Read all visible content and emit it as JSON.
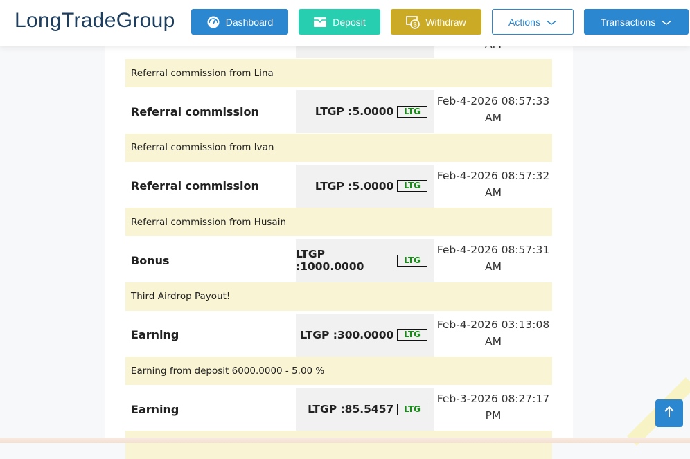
{
  "header": {
    "logo": "LongTradeGroup",
    "dashboard": "Dashboard",
    "deposit": "Deposit",
    "withdraw": "Withdraw",
    "actions": "Actions",
    "transactions": "Transactions"
  },
  "colors": {
    "primary": "#2a87d0",
    "deposit": "#27ceb0",
    "withdraw": "#cbab25",
    "desc_bg": "#f8f4d4",
    "badge_text": "#1a8a1a"
  },
  "partial_row": {
    "date_tail": "AM"
  },
  "transactions": [
    {
      "description": "Referral commission from Lina",
      "type": "Referral commission",
      "amount": "LTGP :5.0000",
      "currency": "LTG",
      "date": "Feb-4-2026 08:57:33",
      "ampm": "AM"
    },
    {
      "description": "Referral commission from Ivan",
      "type": "Referral commission",
      "amount": "LTGP :5.0000",
      "currency": "LTG",
      "date": "Feb-4-2026 08:57:32",
      "ampm": "AM"
    },
    {
      "description": "Referral commission from Husain",
      "type": "Bonus",
      "amount": "LTGP :1000.0000",
      "currency": "LTG",
      "date": "Feb-4-2026 08:57:31",
      "ampm": "AM"
    },
    {
      "description": "Third Airdrop Payout!",
      "type": "Earning",
      "amount": "LTGP :300.0000",
      "currency": "LTG",
      "date": "Feb-4-2026 03:13:08",
      "ampm": "AM"
    },
    {
      "description": "Earning from deposit 6000.0000 - 5.00 %",
      "type": "Earning",
      "amount": "LTGP :85.5457",
      "currency": "LTG",
      "date": "Feb-3-2026 08:27:17",
      "ampm": "PM"
    }
  ]
}
